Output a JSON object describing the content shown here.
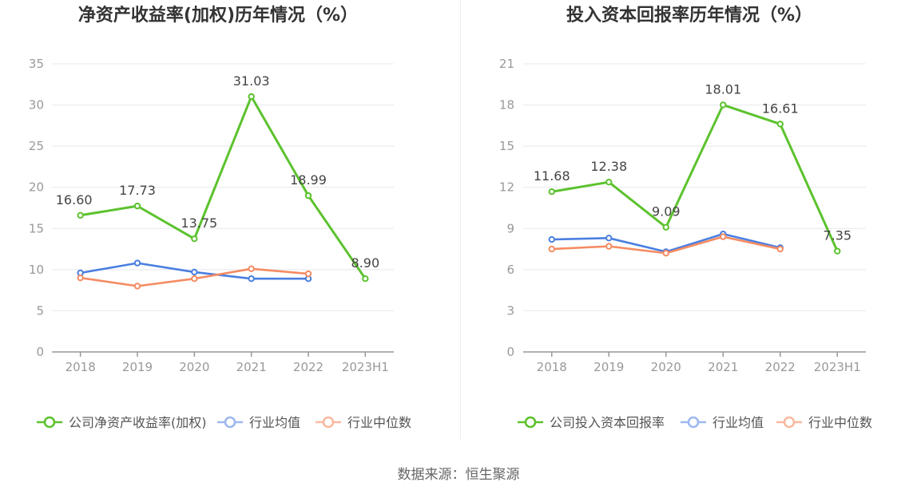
{
  "chart_data": [
    {
      "type": "line",
      "title": "净资产收益率(加权)历年情况（%）",
      "categories": [
        "2018",
        "2019",
        "2020",
        "2021",
        "2022",
        "2023H1"
      ],
      "ylim": [
        0,
        35
      ],
      "yticks": [
        0,
        5,
        10,
        15,
        20,
        25,
        30,
        35
      ],
      "grid": true,
      "legend_position": "bottom",
      "series": [
        {
          "name": "公司净资产收益率(加权)",
          "color": "#5cc22e",
          "values": [
            16.6,
            17.73,
            13.75,
            31.03,
            18.99,
            8.9
          ],
          "labels": [
            "16.60",
            "17.73",
            "13.75",
            "31.03",
            "18.99",
            "8.90"
          ]
        },
        {
          "name": "行业均值",
          "color": "#4a7fe0",
          "values": [
            9.6,
            10.8,
            9.7,
            8.9,
            8.9,
            null
          ]
        },
        {
          "name": "行业中位数",
          "color": "#f58b62",
          "values": [
            9.0,
            8.0,
            8.9,
            10.1,
            9.5,
            null
          ]
        }
      ]
    },
    {
      "type": "line",
      "title": "投入资本回报率历年情况（%）",
      "categories": [
        "2018",
        "2019",
        "2020",
        "2021",
        "2022",
        "2023H1"
      ],
      "ylim": [
        0,
        21
      ],
      "yticks": [
        0,
        3,
        6,
        9,
        12,
        15,
        18,
        21
      ],
      "grid": true,
      "legend_position": "bottom",
      "series": [
        {
          "name": "公司投入资本回报率",
          "color": "#5cc22e",
          "values": [
            11.68,
            12.38,
            9.09,
            18.01,
            16.61,
            7.35
          ],
          "labels": [
            "11.68",
            "12.38",
            "9.09",
            "18.01",
            "16.61",
            "7.35"
          ]
        },
        {
          "name": "行业均值",
          "color": "#4a7fe0",
          "values": [
            8.2,
            8.3,
            7.3,
            8.6,
            7.6,
            null
          ]
        },
        {
          "name": "行业中位数",
          "color": "#f58b62",
          "values": [
            7.5,
            7.7,
            7.2,
            8.4,
            7.5,
            null
          ]
        }
      ]
    }
  ],
  "footer": {
    "source": "数据来源：恒生聚源"
  }
}
